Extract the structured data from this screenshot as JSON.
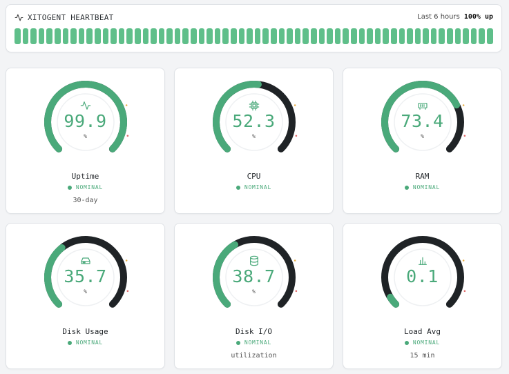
{
  "colors": {
    "accent": "#4aa97a",
    "bar": "#5fbf8a",
    "track": "#1f2326",
    "tick_warn": "#e8b04a",
    "tick_crit": "#e06a6a"
  },
  "header": {
    "title": "XITOGENT HEARTBEAT",
    "icon": "activity-icon",
    "range": "Last 6 hours",
    "uptime": "100% up",
    "bar_count": 60
  },
  "gauges": [
    {
      "label": "Uptime",
      "value": "99.9",
      "fraction": 0.999,
      "unit": "%",
      "status": "NOMINAL",
      "sub": "30-day",
      "icon": "activity-icon"
    },
    {
      "label": "CPU",
      "value": "52.3",
      "fraction": 0.523,
      "unit": "%",
      "status": "NOMINAL",
      "sub": "",
      "icon": "cpu-icon"
    },
    {
      "label": "RAM",
      "value": "73.4",
      "fraction": 0.734,
      "unit": "%",
      "status": "NOMINAL",
      "sub": "",
      "icon": "memory-icon"
    },
    {
      "label": "Disk Usage",
      "value": "35.7",
      "fraction": 0.357,
      "unit": "%",
      "status": "NOMINAL",
      "sub": "",
      "icon": "hard-drive-icon"
    },
    {
      "label": "Disk I/O",
      "value": "38.7",
      "fraction": 0.387,
      "unit": "%",
      "status": "NOMINAL",
      "sub": "utilization",
      "icon": "database-icon"
    },
    {
      "label": "Load Avg",
      "value": "0.1",
      "fraction": 0.05,
      "unit": "",
      "status": "NOMINAL",
      "sub": "15 min",
      "icon": "bar-chart-icon"
    }
  ]
}
